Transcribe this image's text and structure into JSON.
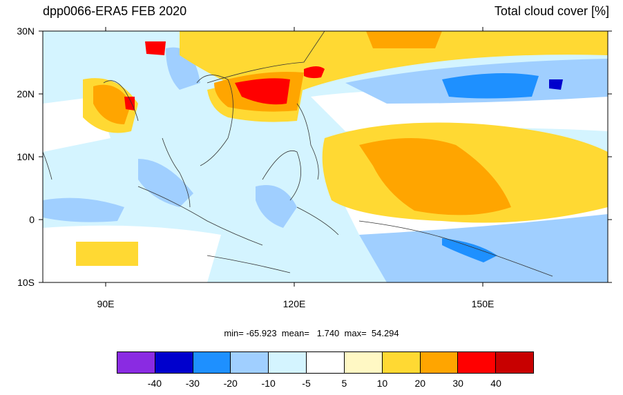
{
  "title_left": "dpp0066-ERA5 FEB 2020",
  "title_right": "Total cloud cover [%]",
  "stats": "min= -65.923  mean=   1.740  max=  54.294",
  "y_labels": [
    "30N",
    "20N",
    "10N",
    "0",
    "10S"
  ],
  "x_labels": [
    "90E",
    "120E",
    "150E"
  ],
  "colorbar": {
    "colors": [
      "#8a2be2",
      "#0000cd",
      "#1e90ff",
      "#a0cfff",
      "#d4f4ff",
      "#ffffff",
      "#fff8c4",
      "#ffd933",
      "#ffa500",
      "#ff0000",
      "#c80000"
    ],
    "labels": [
      "-40",
      "-30",
      "-20",
      "-10",
      "-5",
      "5",
      "10",
      "20",
      "30",
      "40"
    ]
  },
  "colors": {
    "ocean_white": "#ffffff",
    "light_blue": "#d4f4ff",
    "blue": "#a0cfff",
    "yellow": "#ffd933",
    "orange": "#ffa500",
    "red": "#ff0000"
  }
}
